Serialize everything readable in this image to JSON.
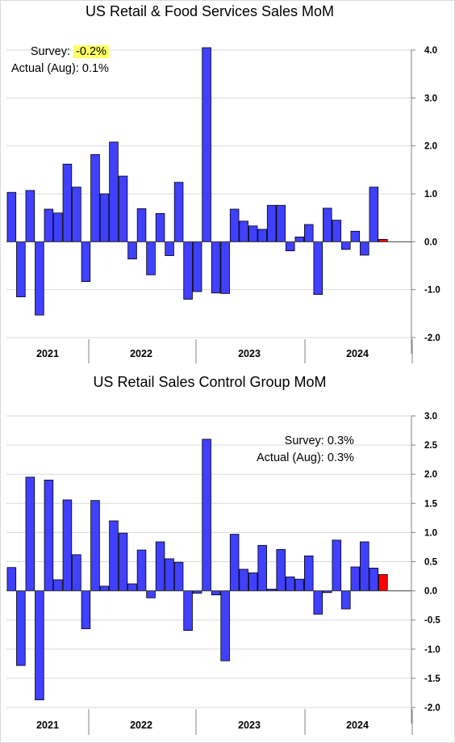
{
  "colors": {
    "bar": "#4040ff",
    "latest": "#ff0000",
    "highlight": "#ffff66",
    "grid": "#d9d9d9"
  },
  "panel1": {
    "title": "US Retail & Food Services Sales MoM",
    "survey_label": "Survey:",
    "survey_value": "-0.2%",
    "actual_label": "Actual (Aug):",
    "actual_value": "0.1%"
  },
  "panel2": {
    "title": "US Retail Sales Control Group MoM",
    "survey_label": "Survey:",
    "survey_value": "0.3%",
    "actual_label": "Actual (Aug):",
    "actual_value": "0.3%"
  },
  "chart_data": [
    {
      "type": "bar",
      "title": "US Retail & Food Services Sales MoM",
      "year_labels": [
        "2021",
        "2022",
        "2023",
        "2024"
      ],
      "yticks": [
        "4.0",
        "3.0",
        "2.0",
        "1.0",
        "0.0",
        "-1.0",
        "-2.0"
      ],
      "ylim": [
        -2.0,
        4.0
      ],
      "grid": true,
      "values": [
        1.03,
        -1.15,
        1.07,
        -1.53,
        0.68,
        0.6,
        1.62,
        1.14,
        -0.83,
        1.82,
        1.0,
        2.08,
        1.37,
        -0.36,
        0.69,
        -0.69,
        0.59,
        -0.29,
        1.24,
        -1.2,
        -1.04,
        4.05,
        -1.07,
        -1.08,
        0.68,
        0.43,
        0.33,
        0.26,
        0.76,
        0.76,
        -0.19,
        0.1,
        0.36,
        -1.1,
        0.7,
        0.45,
        -0.16,
        0.22,
        -0.28,
        1.14,
        0.05
      ],
      "highlight_last": true
    },
    {
      "type": "bar",
      "title": "US Retail Sales Control Group MoM",
      "year_labels": [
        "2021",
        "2022",
        "2023",
        "2024"
      ],
      "yticks": [
        "3.0",
        "2.5",
        "2.0",
        "1.5",
        "1.0",
        "0.5",
        "0.0",
        "-0.5",
        "-1.0",
        "-1.5",
        "-2.0"
      ],
      "ylim": [
        -2.0,
        3.0
      ],
      "grid": true,
      "values": [
        0.4,
        -1.28,
        1.95,
        -1.87,
        1.9,
        0.19,
        1.56,
        0.62,
        -0.65,
        1.55,
        0.08,
        1.2,
        0.99,
        0.12,
        0.7,
        -0.12,
        0.84,
        0.55,
        0.49,
        -0.68,
        -0.04,
        2.6,
        -0.07,
        -1.2,
        0.97,
        0.37,
        0.31,
        0.78,
        0.03,
        0.71,
        0.24,
        0.2,
        0.6,
        -0.4,
        -0.03,
        0.87,
        -0.31,
        0.41,
        0.84,
        0.39,
        0.28
      ],
      "highlight_last": true
    }
  ]
}
